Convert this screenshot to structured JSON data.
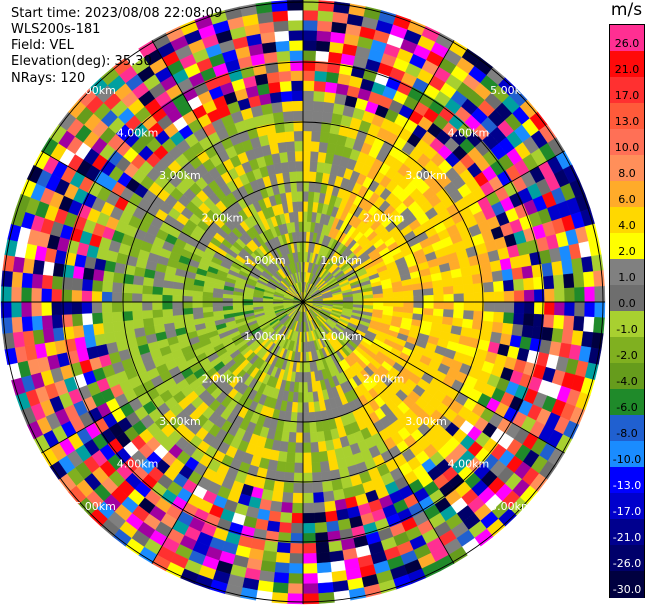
{
  "info": {
    "start_time": "Start time: 2023/08/08 22:08:09",
    "station": "WLS200s-181",
    "field": "Field: VEL",
    "elevation": "Elevation(deg): 35.30",
    "nrays": "NRays: 120"
  },
  "colorbar": {
    "unit": "m/s",
    "levels": [
      {
        "label": "26.0",
        "color": "#ff2f92"
      },
      {
        "label": "21.0",
        "color": "#ff0a0a"
      },
      {
        "label": "17.0",
        "color": "#ff3030"
      },
      {
        "label": "13.0",
        "color": "#ff5a3a"
      },
      {
        "label": "10.0",
        "color": "#ff7056"
      },
      {
        "label": "8.0",
        "color": "#ff8f5a"
      },
      {
        "label": "6.0",
        "color": "#ffab2a"
      },
      {
        "label": "4.0",
        "color": "#ffd800"
      },
      {
        "label": "2.0",
        "color": "#ffff00"
      },
      {
        "label": "1.0",
        "color": "#808080"
      },
      {
        "label": "0.0",
        "color": "#6e6e6e"
      },
      {
        "label": "-1.0",
        "color": "#a8d030"
      },
      {
        "label": "-2.0",
        "color": "#80b020"
      },
      {
        "label": "-4.0",
        "color": "#669c1c"
      },
      {
        "label": "-6.0",
        "color": "#1f8a2a"
      },
      {
        "label": "-8.0",
        "color": "#2060d0"
      },
      {
        "label": "-10.0",
        "color": "#1a8cff"
      },
      {
        "label": "-13.0",
        "color": "#0000ff"
      },
      {
        "label": "-17.0",
        "color": "#0000cc"
      },
      {
        "label": "-21.0",
        "color": "#00008e"
      },
      {
        "label": "-26.0",
        "color": "#00006a"
      },
      {
        "label": "-30.0",
        "color": "#000040"
      }
    ]
  },
  "range_labels": {
    "r1": "1.00km",
    "r2": "2.00km",
    "r3": "3.00km",
    "r4": "4.00km",
    "r5": "5.00km"
  }
}
